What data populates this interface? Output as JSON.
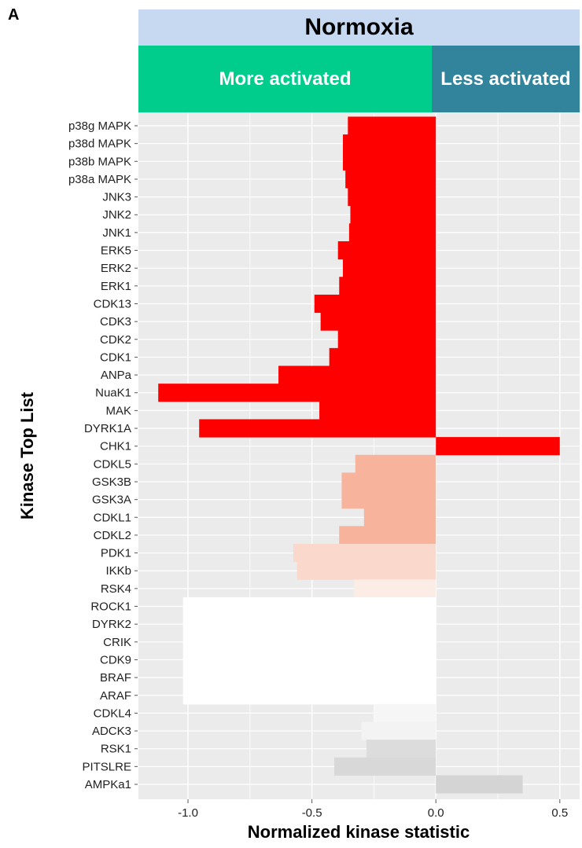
{
  "panel_letter": "A",
  "header": {
    "title": "Normoxia",
    "more_label": "More activated",
    "less_label": "Less activated"
  },
  "chart_data": {
    "type": "bar",
    "orientation": "horizontal",
    "xlabel": "Normalized kinase statistic",
    "ylabel": "Kinase Top List",
    "xlim": [
      -1.2,
      0.58
    ],
    "xticks": [
      "-1.0",
      "-0.5",
      "0.0",
      "0.5"
    ],
    "xtick_values": [
      -1.0,
      -0.5,
      0.0,
      0.5
    ],
    "grid": true,
    "background": "#ebebeb",
    "bars": [
      {
        "label": "p38g MAPK",
        "value": -0.355,
        "color": "#ff0000"
      },
      {
        "label": "p38d MAPK",
        "value": -0.375,
        "color": "#ff0000"
      },
      {
        "label": "p38b MAPK",
        "value": -0.375,
        "color": "#ff0000"
      },
      {
        "label": "p38a MAPK",
        "value": -0.365,
        "color": "#ff0000"
      },
      {
        "label": "JNK3",
        "value": -0.355,
        "color": "#ff0000"
      },
      {
        "label": "JNK2",
        "value": -0.345,
        "color": "#ff0000"
      },
      {
        "label": "JNK1",
        "value": -0.35,
        "color": "#ff0000"
      },
      {
        "label": "ERK5",
        "value": -0.395,
        "color": "#ff0000"
      },
      {
        "label": "ERK2",
        "value": -0.375,
        "color": "#ff0000"
      },
      {
        "label": "ERK1",
        "value": -0.39,
        "color": "#ff0000"
      },
      {
        "label": "CDK13",
        "value": -0.49,
        "color": "#ff0000"
      },
      {
        "label": "CDK3",
        "value": -0.465,
        "color": "#ff0000"
      },
      {
        "label": "CDK2",
        "value": -0.395,
        "color": "#ff0000"
      },
      {
        "label": "CDK1",
        "value": -0.43,
        "color": "#ff0000"
      },
      {
        "label": "ANPa",
        "value": -0.635,
        "color": "#ff0000"
      },
      {
        "label": "NuaK1",
        "value": -1.12,
        "color": "#ff0000"
      },
      {
        "label": "MAK",
        "value": -0.47,
        "color": "#ff0000"
      },
      {
        "label": "DYRK1A",
        "value": -0.955,
        "color": "#ff0000"
      },
      {
        "label": "CHK1",
        "value": 0.5,
        "color": "#ff0000"
      },
      {
        "label": "CDKL5",
        "value": -0.325,
        "color": "#f7b39c"
      },
      {
        "label": "GSK3B",
        "value": -0.38,
        "color": "#f7b39c"
      },
      {
        "label": "GSK3A",
        "value": -0.38,
        "color": "#f7b39c"
      },
      {
        "label": "CDKL1",
        "value": -0.29,
        "color": "#f7b39c"
      },
      {
        "label": "CDKL2",
        "value": -0.39,
        "color": "#f7b39c"
      },
      {
        "label": "PDK1",
        "value": -0.575,
        "color": "#fbd8cc"
      },
      {
        "label": "IKKb",
        "value": -0.56,
        "color": "#fbd8cc"
      },
      {
        "label": "RSK4",
        "value": -0.33,
        "color": "#fbece6"
      },
      {
        "label": "ROCK1",
        "value": -1.02,
        "color": "#ffffff"
      },
      {
        "label": "DYRK2",
        "value": -1.02,
        "color": "#ffffff"
      },
      {
        "label": "CRIK",
        "value": -1.02,
        "color": "#ffffff"
      },
      {
        "label": "CDK9",
        "value": -1.02,
        "color": "#ffffff"
      },
      {
        "label": "BRAF",
        "value": -1.02,
        "color": "#ffffff"
      },
      {
        "label": "ARAF",
        "value": -1.02,
        "color": "#ffffff"
      },
      {
        "label": "CDKL4",
        "value": -0.25,
        "color": "#f6f6f6"
      },
      {
        "label": "ADCK3",
        "value": -0.3,
        "color": "#f3f3f3"
      },
      {
        "label": "RSK1",
        "value": -0.28,
        "color": "#dcdcdc"
      },
      {
        "label": "PITSLRE",
        "value": -0.41,
        "color": "#d8d8d8"
      },
      {
        "label": "AMPKa1",
        "value": 0.35,
        "color": "#d4d4d4"
      }
    ]
  }
}
